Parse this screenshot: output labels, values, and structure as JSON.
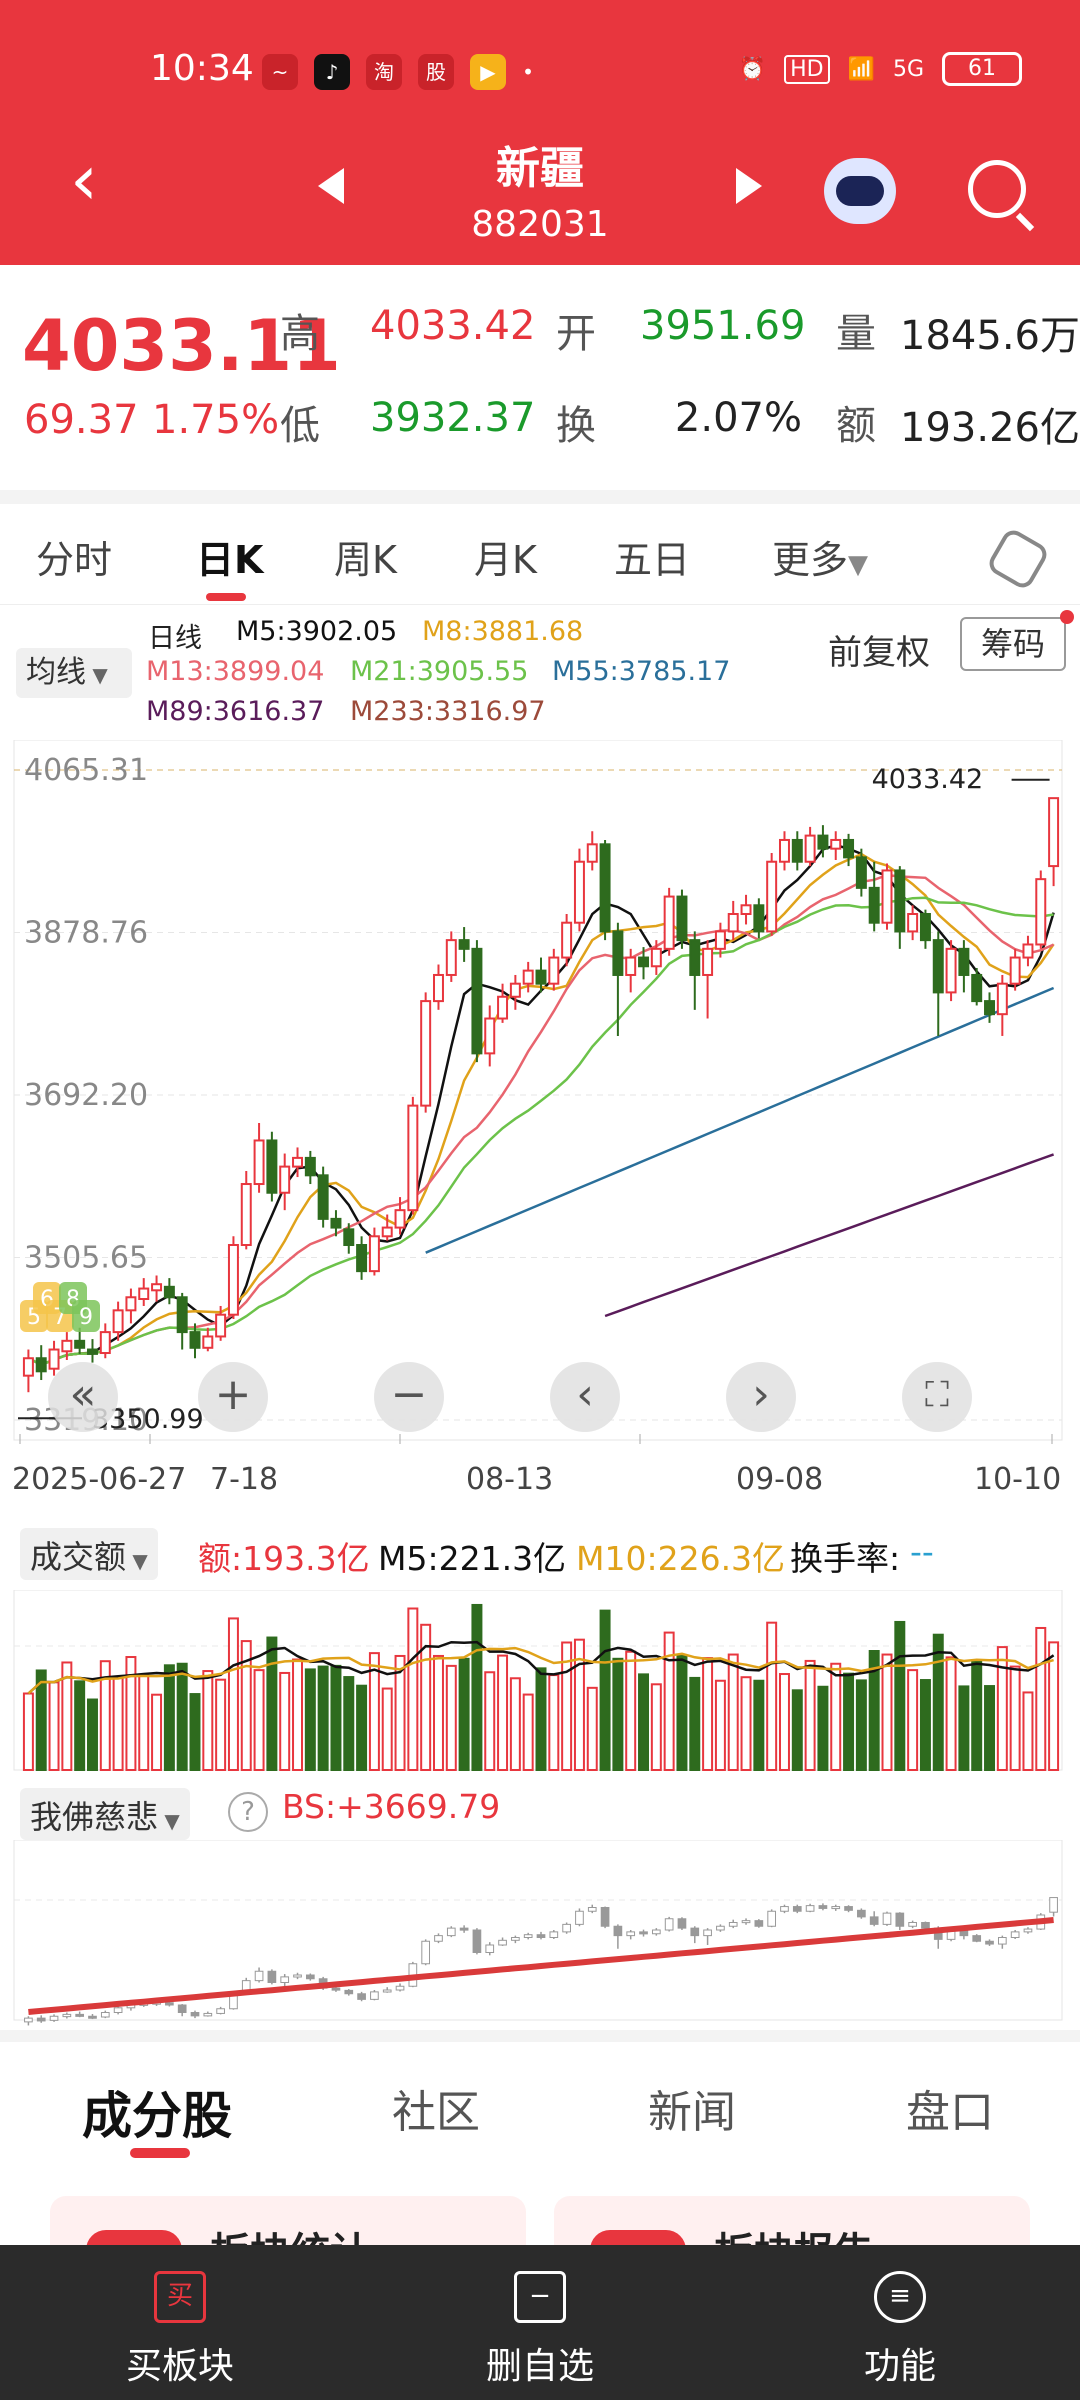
{
  "status": {
    "time": "10:34",
    "signal": "5G",
    "hd": "HD",
    "battery": "61"
  },
  "header": {
    "title": "新疆",
    "code": "882031"
  },
  "quote": {
    "price": "4033.11",
    "change": "69.37",
    "change_pct": "1.75%",
    "labels": {
      "high": "高",
      "low": "低",
      "open": "开",
      "turnover": "换",
      "volume": "量",
      "amount": "额"
    },
    "high": "4033.42",
    "low": "3932.37",
    "open": "3951.69",
    "turnover": "2.07%",
    "volume": "1845.6万",
    "amount": "193.26亿"
  },
  "kline_tabs": [
    "分时",
    "日K",
    "周K",
    "月K",
    "五日",
    "更多"
  ],
  "legend": {
    "ma_button": "均线",
    "period": "日线",
    "m5": "M5:3902.05",
    "m8": "M8:3881.68",
    "m13": "M13:3899.04",
    "m21": "M21:3905.55",
    "m55": "M55:3785.17",
    "m89": "M89:3616.37",
    "m233": "M233:3316.97",
    "adjust": "前复权",
    "chip": "筹码"
  },
  "colors": {
    "up": "#e8363e",
    "down": "#2e6b1e",
    "m5": "#111111",
    "m8": "#e0a21a",
    "m13": "#e8646e",
    "m21": "#6cc24a",
    "m55": "#2a6f9a",
    "m89": "#5a1c5a"
  },
  "chart_data": {
    "type": "candlestick",
    "y_ticks": [
      "4065.31",
      "3878.76",
      "3692.20",
      "3505.65",
      "3319.10"
    ],
    "ylim": [
      3319.1,
      4065.31
    ],
    "x_ticks": [
      "2025-06-27",
      "7-18",
      "08-13",
      "09-08",
      "10-10"
    ],
    "high_marker": "4033.42",
    "low_marker": "3350.99",
    "marker_badges": [
      "5",
      "6",
      "7",
      "8",
      "9"
    ],
    "candles": [
      {
        "o": 3370,
        "c": 3390,
        "h": 3400,
        "l": 3351
      },
      {
        "o": 3390,
        "c": 3375,
        "h": 3405,
        "l": 3365
      },
      {
        "o": 3378,
        "c": 3400,
        "h": 3410,
        "l": 3370
      },
      {
        "o": 3398,
        "c": 3410,
        "h": 3420,
        "l": 3388
      },
      {
        "o": 3410,
        "c": 3402,
        "h": 3425,
        "l": 3395
      },
      {
        "o": 3400,
        "c": 3395,
        "h": 3412,
        "l": 3385
      },
      {
        "o": 3396,
        "c": 3420,
        "h": 3430,
        "l": 3390
      },
      {
        "o": 3420,
        "c": 3445,
        "h": 3455,
        "l": 3410
      },
      {
        "o": 3445,
        "c": 3460,
        "h": 3470,
        "l": 3430
      },
      {
        "o": 3458,
        "c": 3470,
        "h": 3482,
        "l": 3450
      },
      {
        "o": 3468,
        "c": 3475,
        "h": 3485,
        "l": 3455
      },
      {
        "o": 3472,
        "c": 3460,
        "h": 3482,
        "l": 3452
      },
      {
        "o": 3460,
        "c": 3420,
        "h": 3465,
        "l": 3400
      },
      {
        "o": 3420,
        "c": 3402,
        "h": 3430,
        "l": 3390
      },
      {
        "o": 3402,
        "c": 3415,
        "h": 3425,
        "l": 3398
      },
      {
        "o": 3415,
        "c": 3440,
        "h": 3450,
        "l": 3410
      },
      {
        "o": 3440,
        "c": 3520,
        "h": 3530,
        "l": 3435
      },
      {
        "o": 3520,
        "c": 3590,
        "h": 3605,
        "l": 3515
      },
      {
        "o": 3590,
        "c": 3640,
        "h": 3660,
        "l": 3580
      },
      {
        "o": 3640,
        "c": 3580,
        "h": 3650,
        "l": 3570
      },
      {
        "o": 3580,
        "c": 3610,
        "h": 3625,
        "l": 3560
      },
      {
        "o": 3610,
        "c": 3620,
        "h": 3632,
        "l": 3598
      },
      {
        "o": 3620,
        "c": 3600,
        "h": 3628,
        "l": 3590
      },
      {
        "o": 3600,
        "c": 3550,
        "h": 3610,
        "l": 3540
      },
      {
        "o": 3550,
        "c": 3540,
        "h": 3560,
        "l": 3530
      },
      {
        "o": 3538,
        "c": 3520,
        "h": 3545,
        "l": 3510
      },
      {
        "o": 3520,
        "c": 3490,
        "h": 3530,
        "l": 3480
      },
      {
        "o": 3490,
        "c": 3530,
        "h": 3540,
        "l": 3485
      },
      {
        "o": 3530,
        "c": 3540,
        "h": 3555,
        "l": 3525
      },
      {
        "o": 3540,
        "c": 3560,
        "h": 3575,
        "l": 3532
      },
      {
        "o": 3560,
        "c": 3680,
        "h": 3690,
        "l": 3555
      },
      {
        "o": 3680,
        "c": 3800,
        "h": 3810,
        "l": 3672
      },
      {
        "o": 3800,
        "c": 3830,
        "h": 3842,
        "l": 3790
      },
      {
        "o": 3830,
        "c": 3870,
        "h": 3880,
        "l": 3822
      },
      {
        "o": 3870,
        "c": 3860,
        "h": 3885,
        "l": 3845
      },
      {
        "o": 3860,
        "c": 3740,
        "h": 3870,
        "l": 3730
      },
      {
        "o": 3740,
        "c": 3780,
        "h": 3795,
        "l": 3725
      },
      {
        "o": 3780,
        "c": 3805,
        "h": 3820,
        "l": 3775
      },
      {
        "o": 3805,
        "c": 3820,
        "h": 3830,
        "l": 3790
      },
      {
        "o": 3820,
        "c": 3835,
        "h": 3845,
        "l": 3810
      },
      {
        "o": 3835,
        "c": 3820,
        "h": 3850,
        "l": 3810
      },
      {
        "o": 3820,
        "c": 3850,
        "h": 3860,
        "l": 3812
      },
      {
        "o": 3850,
        "c": 3890,
        "h": 3900,
        "l": 3840
      },
      {
        "o": 3890,
        "c": 3960,
        "h": 3975,
        "l": 3880
      },
      {
        "o": 3960,
        "c": 3980,
        "h": 3995,
        "l": 3950
      },
      {
        "o": 3980,
        "c": 3880,
        "h": 3985,
        "l": 3870
      },
      {
        "o": 3880,
        "c": 3830,
        "h": 3890,
        "l": 3760
      },
      {
        "o": 3830,
        "c": 3850,
        "h": 3860,
        "l": 3810
      },
      {
        "o": 3850,
        "c": 3840,
        "h": 3862,
        "l": 3825
      },
      {
        "o": 3840,
        "c": 3860,
        "h": 3870,
        "l": 3830
      },
      {
        "o": 3860,
        "c": 3920,
        "h": 3930,
        "l": 3852
      },
      {
        "o": 3920,
        "c": 3870,
        "h": 3928,
        "l": 3860
      },
      {
        "o": 3870,
        "c": 3830,
        "h": 3880,
        "l": 3790
      },
      {
        "o": 3830,
        "c": 3860,
        "h": 3870,
        "l": 3780
      },
      {
        "o": 3860,
        "c": 3880,
        "h": 3890,
        "l": 3850
      },
      {
        "o": 3880,
        "c": 3900,
        "h": 3915,
        "l": 3870
      },
      {
        "o": 3900,
        "c": 3910,
        "h": 3922,
        "l": 3888
      },
      {
        "o": 3910,
        "c": 3880,
        "h": 3918,
        "l": 3872
      },
      {
        "o": 3880,
        "c": 3960,
        "h": 3970,
        "l": 3875
      },
      {
        "o": 3960,
        "c": 3985,
        "h": 3995,
        "l": 3950
      },
      {
        "o": 3985,
        "c": 3960,
        "h": 3995,
        "l": 3950
      },
      {
        "o": 3960,
        "c": 3990,
        "h": 4000,
        "l": 3955
      },
      {
        "o": 3990,
        "c": 3975,
        "h": 4002,
        "l": 3965
      },
      {
        "o": 3975,
        "c": 3985,
        "h": 3995,
        "l": 3962
      },
      {
        "o": 3985,
        "c": 3965,
        "h": 3992,
        "l": 3955
      },
      {
        "o": 3965,
        "c": 3930,
        "h": 3975,
        "l": 3920
      },
      {
        "o": 3930,
        "c": 3890,
        "h": 3960,
        "l": 3880
      },
      {
        "o": 3890,
        "c": 3950,
        "h": 3958,
        "l": 3882
      },
      {
        "o": 3950,
        "c": 3880,
        "h": 3955,
        "l": 3860
      },
      {
        "o": 3880,
        "c": 3900,
        "h": 3910,
        "l": 3870
      },
      {
        "o": 3900,
        "c": 3870,
        "h": 3905,
        "l": 3860
      },
      {
        "o": 3870,
        "c": 3810,
        "h": 3880,
        "l": 3760
      },
      {
        "o": 3810,
        "c": 3860,
        "h": 3870,
        "l": 3800
      },
      {
        "o": 3860,
        "c": 3830,
        "h": 3870,
        "l": 3810
      },
      {
        "o": 3830,
        "c": 3800,
        "h": 3838,
        "l": 3795
      },
      {
        "o": 3800,
        "c": 3785,
        "h": 3810,
        "l": 3775
      },
      {
        "o": 3785,
        "c": 3820,
        "h": 3830,
        "l": 3760
      },
      {
        "o": 3820,
        "c": 3850,
        "h": 3860,
        "l": 3812
      },
      {
        "o": 3850,
        "c": 3865,
        "h": 3875,
        "l": 3840
      },
      {
        "o": 3865,
        "c": 3940,
        "h": 3950,
        "l": 3860
      },
      {
        "o": 3955,
        "c": 4033,
        "h": 4033,
        "l": 3932
      }
    ]
  },
  "volume": {
    "button": "成交额",
    "amount": "额:193.3亿",
    "m5": "M5:221.3亿",
    "m10": "M10:226.3亿",
    "turnover_label": "换手率:",
    "turnover_value": "--"
  },
  "indicator": {
    "button": "我佛慈悲",
    "bs": "BS:+3669.79"
  },
  "bottom_tabs": [
    "成分股",
    "社区",
    "新闻",
    "盘口"
  ],
  "cards": [
    "板块统计",
    "板块报告"
  ],
  "bottom_bar": {
    "buy": "买板块",
    "buy_icon": "买",
    "remove": "删自选",
    "func": "功能"
  }
}
